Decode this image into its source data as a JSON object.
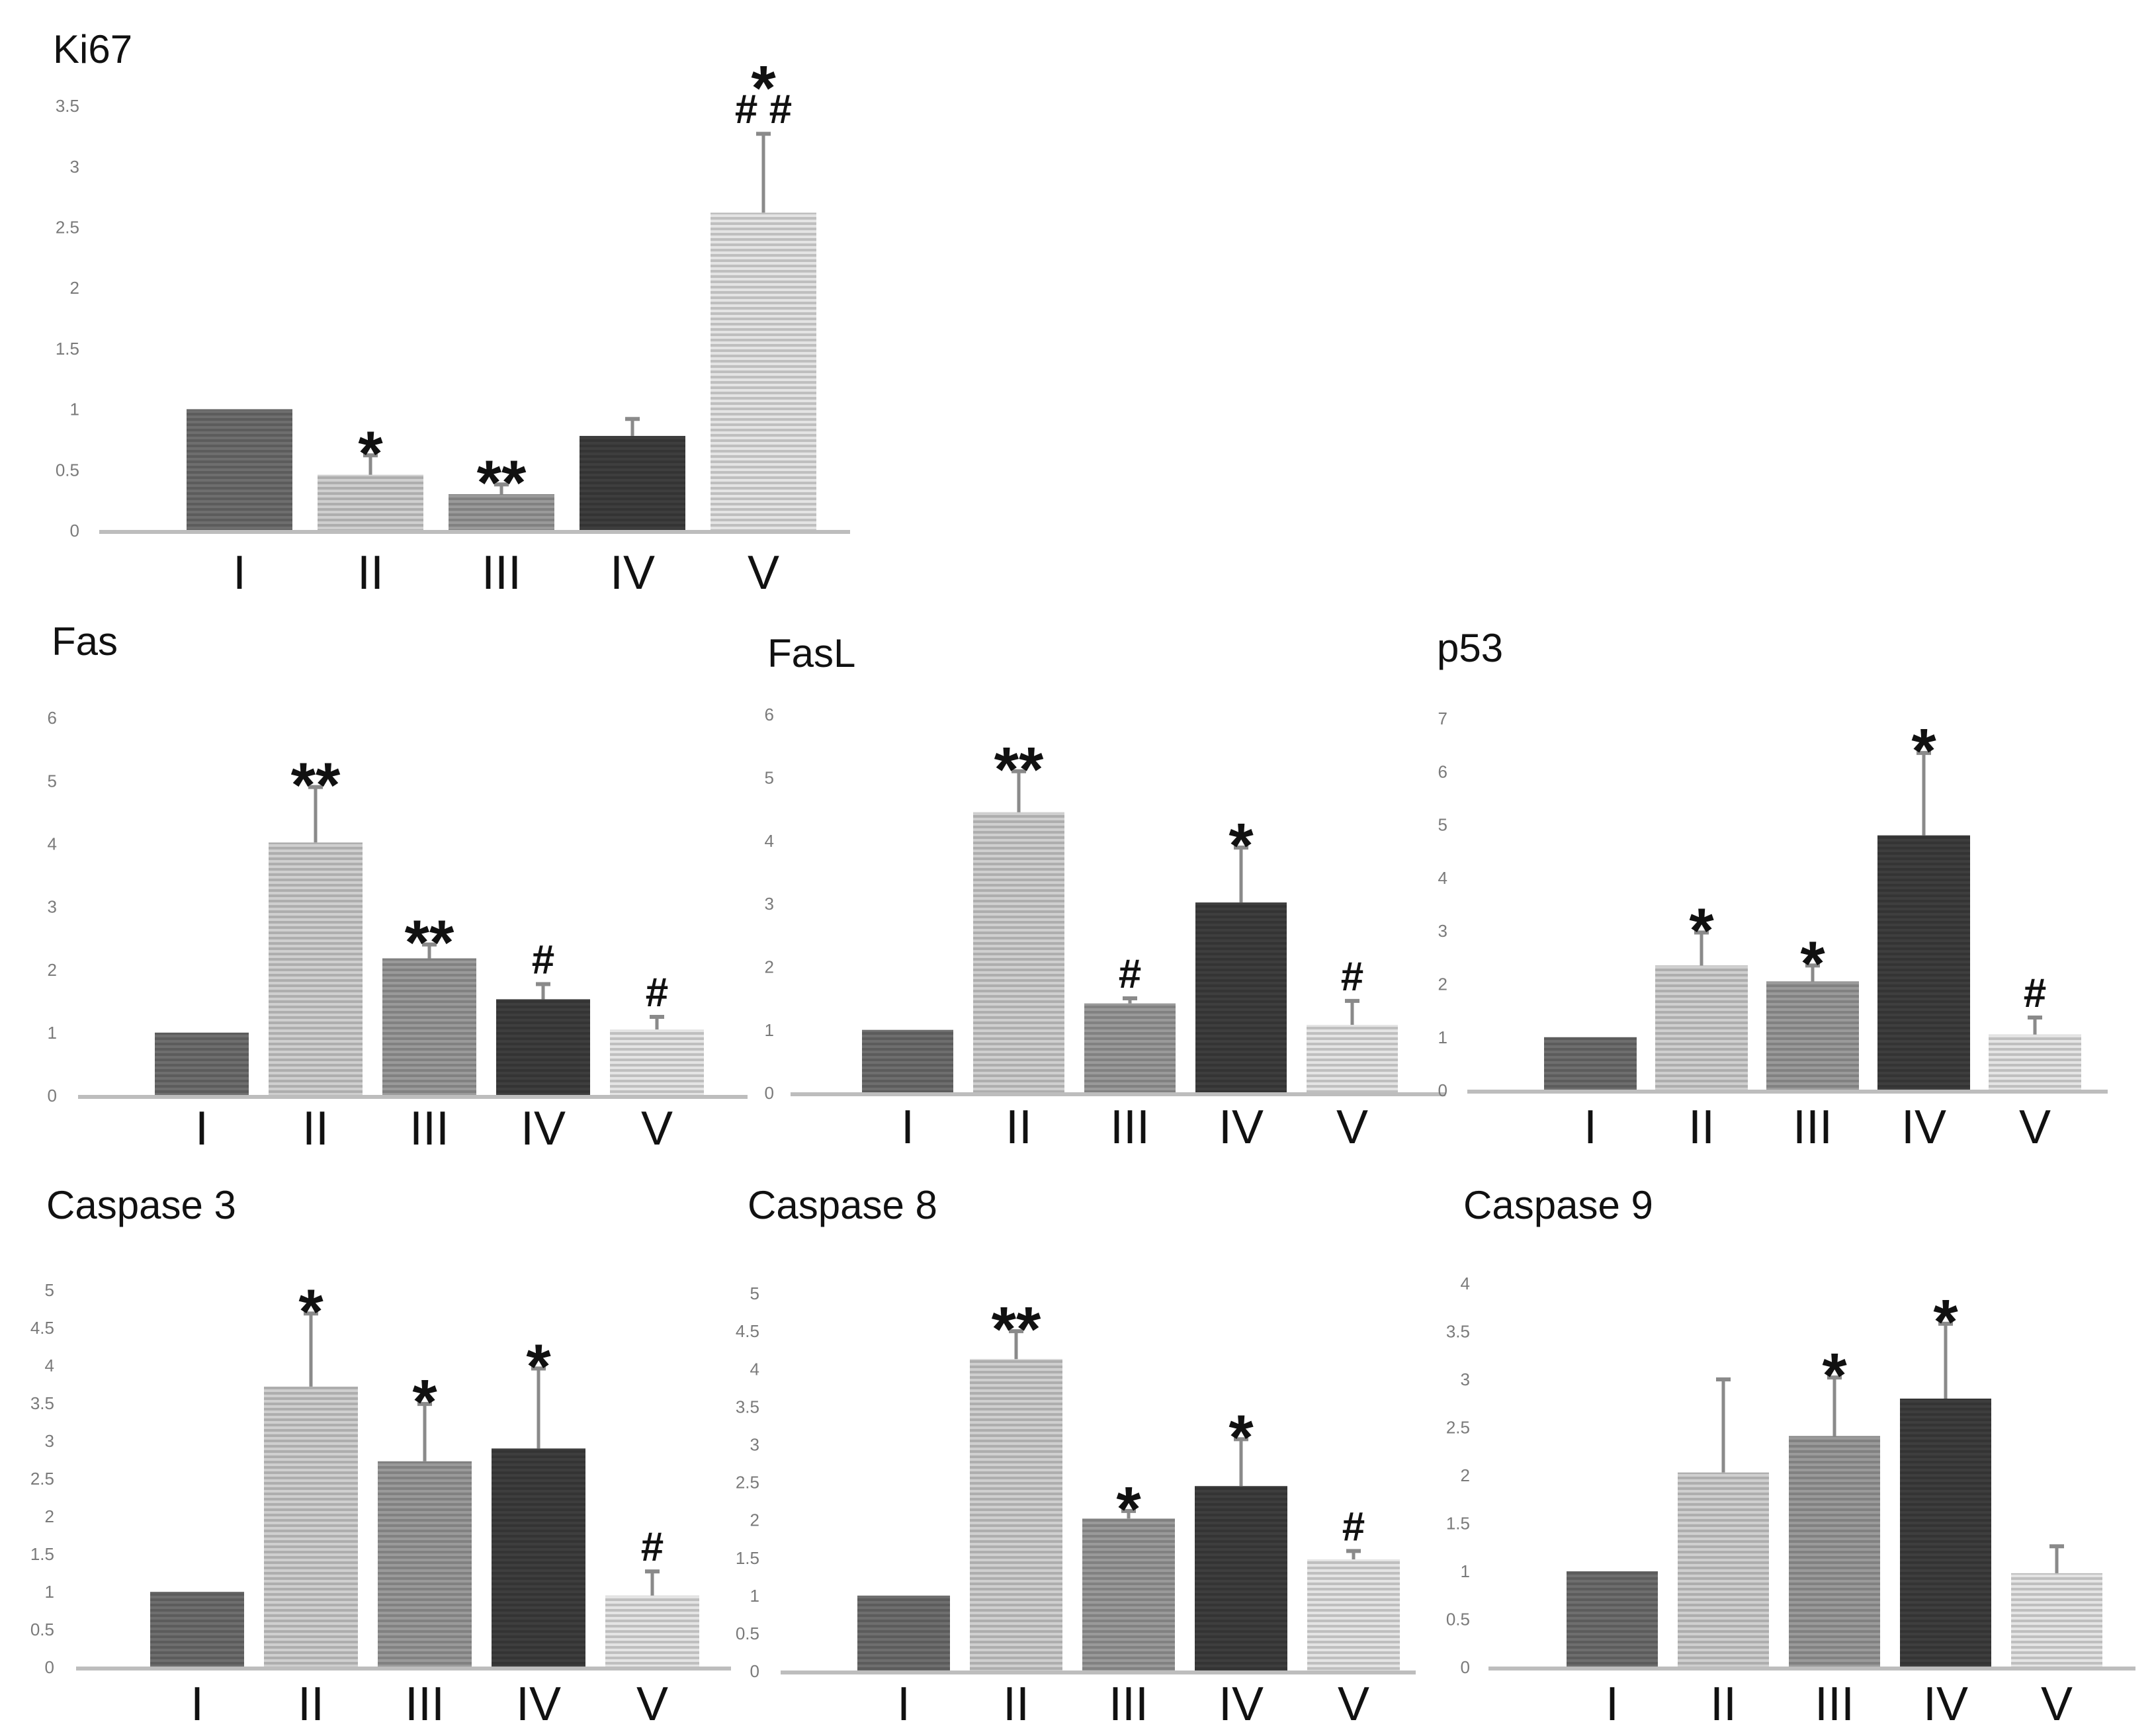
{
  "figure_title": "",
  "colors": {
    "I": "#6e6e6e",
    "II": "#cfcfcf",
    "III": "#9a9a9a",
    "IV": "#3e3e3e",
    "V": "#e4e4e4",
    "errorbar": "#8a8a8a",
    "axis": "#bdbdbd"
  },
  "chart_data": [
    {
      "type": "bar",
      "title": "Ki67",
      "categories": [
        "I",
        "II",
        "III",
        "IV",
        "V"
      ],
      "values": [
        1.0,
        0.46,
        0.3,
        0.78,
        2.62
      ],
      "errors": [
        0.0,
        0.16,
        0.08,
        0.14,
        0.65
      ],
      "annotations": [
        "",
        "*",
        "**",
        "",
        "*\n# #"
      ],
      "yticks": [
        "0",
        "0.5",
        "1",
        "1.5",
        "2",
        "2.5",
        "3",
        "3.5"
      ],
      "ylim": [
        0,
        3.5
      ],
      "xlabel": "",
      "ylabel": ""
    },
    {
      "type": "bar",
      "title": "Fas",
      "categories": [
        "I",
        "II",
        "III",
        "IV",
        "V"
      ],
      "values": [
        1.0,
        4.02,
        2.18,
        1.53,
        1.05
      ],
      "errors": [
        0.0,
        0.88,
        0.22,
        0.24,
        0.2
      ],
      "annotations": [
        "",
        "**",
        "**",
        "#",
        "#"
      ],
      "yticks": [
        "0",
        "1",
        "2",
        "3",
        "4",
        "5",
        "6"
      ],
      "ylim": [
        0,
        6
      ],
      "xlabel": "",
      "ylabel": ""
    },
    {
      "type": "bar",
      "title": "FasL",
      "categories": [
        "I",
        "II",
        "III",
        "IV",
        "V"
      ],
      "values": [
        1.0,
        4.45,
        1.42,
        3.02,
        1.08
      ],
      "errors": [
        0.0,
        0.65,
        0.08,
        0.87,
        0.38
      ],
      "annotations": [
        "",
        "**",
        "#",
        "*",
        "#"
      ],
      "yticks": [
        "0",
        "1",
        "2",
        "3",
        "4",
        "5",
        "6"
      ],
      "ylim": [
        0,
        6
      ],
      "xlabel": "",
      "ylabel": ""
    },
    {
      "type": "bar",
      "title": "p53",
      "categories": [
        "I",
        "II",
        "III",
        "IV",
        "V"
      ],
      "values": [
        1.0,
        2.35,
        2.05,
        4.8,
        1.05
      ],
      "errors": [
        0.0,
        0.62,
        0.3,
        1.55,
        0.32
      ],
      "annotations": [
        "",
        "*",
        "*",
        "*",
        "#"
      ],
      "yticks": [
        "0",
        "1",
        "2",
        "3",
        "4",
        "5",
        "6",
        "7"
      ],
      "ylim": [
        0,
        7
      ],
      "xlabel": "",
      "ylabel": ""
    },
    {
      "type": "bar",
      "title": "Caspase 3",
      "categories": [
        "I",
        "II",
        "III",
        "IV",
        "V"
      ],
      "values": [
        1.0,
        3.72,
        2.73,
        2.9,
        0.95
      ],
      "errors": [
        0.0,
        0.97,
        0.76,
        1.06,
        0.32
      ],
      "annotations": [
        "",
        "*",
        "*",
        "*",
        "#"
      ],
      "yticks": [
        "0",
        "0.5",
        "1",
        "1.5",
        "2",
        "2.5",
        "3",
        "3.5",
        "4",
        "4.5",
        "5"
      ],
      "ylim": [
        0,
        5
      ],
      "xlabel": "",
      "ylabel": ""
    },
    {
      "type": "bar",
      "title": "Caspase 8",
      "categories": [
        "I",
        "II",
        "III",
        "IV",
        "V"
      ],
      "values": [
        1.0,
        4.13,
        2.02,
        2.45,
        1.48
      ],
      "errors": [
        0.0,
        0.37,
        0.1,
        0.62,
        0.11
      ],
      "annotations": [
        "",
        "**",
        "*",
        "*",
        "#"
      ],
      "yticks": [
        "0",
        "0.5",
        "1",
        "1.5",
        "2",
        "2.5",
        "3",
        "3.5",
        "4",
        "4.5",
        "5"
      ],
      "ylim": [
        0,
        5
      ],
      "xlabel": "",
      "ylabel": ""
    },
    {
      "type": "bar",
      "title": "Caspase 9",
      "categories": [
        "I",
        "II",
        "III",
        "IV",
        "V"
      ],
      "values": [
        1.0,
        2.03,
        2.41,
        2.8,
        0.98
      ],
      "errors": [
        0.0,
        0.97,
        0.61,
        0.78,
        0.28
      ],
      "annotations": [
        "",
        "",
        "*",
        "*",
        ""
      ],
      "yticks": [
        "0",
        "0.5",
        "1",
        "1.5",
        "2",
        "2.5",
        "3",
        "3.5",
        "4"
      ],
      "ylim": [
        0,
        4
      ],
      "xlabel": "",
      "ylabel": ""
    }
  ]
}
